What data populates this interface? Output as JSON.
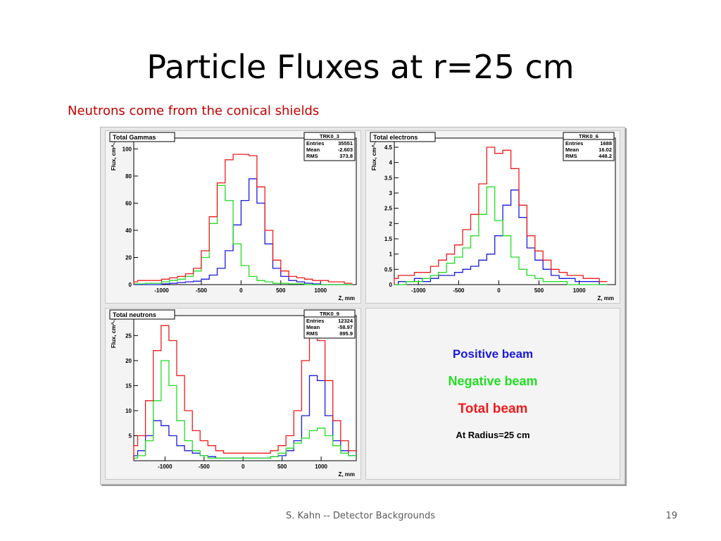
{
  "slide": {
    "title": "Particle Fluxes at r=25 cm",
    "subtitle": "Neutrons come from the conical shields",
    "footer": "S. Kahn -- Detector Backgrounds",
    "page_number": "19"
  },
  "legend": {
    "positive": "Positive beam",
    "negative": "Negative beam",
    "total": "Total beam",
    "radius": "At Radius=25 cm",
    "colors": {
      "positive": "#1a1adc",
      "negative": "#22dd22",
      "total": "#ee1c1c"
    }
  },
  "chart_data": [
    {
      "type": "line",
      "title": "Total Gammas",
      "xlabel": "Z, mm",
      "ylabel": "Flux, cm^-2",
      "xlim": [
        -1350,
        1450
      ],
      "ylim": [
        0,
        108
      ],
      "xticks": [
        -1000,
        -500,
        0,
        500,
        1000
      ],
      "yticks": [
        0,
        20,
        40,
        60,
        80,
        100
      ],
      "stats": {
        "name": "TRK0_3",
        "rows": [
          [
            "Entries",
            "35551"
          ],
          [
            "Mean",
            "-2.603"
          ],
          [
            "RMS",
            "373.8"
          ]
        ]
      },
      "x": [
        -1350,
        -1250,
        -1150,
        -1050,
        -950,
        -850,
        -750,
        -650,
        -550,
        -450,
        -350,
        -250,
        -150,
        -50,
        50,
        150,
        250,
        350,
        450,
        550,
        650,
        750,
        850,
        950,
        1050,
        1150,
        1250,
        1350
      ],
      "series": [
        {
          "name": "Positive beam",
          "color": "#1a1adc",
          "values": [
            0,
            0,
            0,
            0,
            0.5,
            1,
            1.5,
            2,
            2.5,
            4,
            7,
            12,
            25,
            44,
            62,
            78,
            60,
            30,
            12,
            6,
            3,
            2,
            1,
            0.5,
            0,
            0,
            0,
            0
          ]
        },
        {
          "name": "Negative beam",
          "color": "#22dd22",
          "values": [
            0.5,
            0.5,
            1,
            1,
            2,
            3,
            4,
            6,
            10,
            20,
            45,
            73,
            62,
            30,
            14,
            6,
            3,
            2,
            1,
            1,
            0.5,
            0.5,
            0,
            0,
            0,
            0,
            0,
            0
          ]
        },
        {
          "name": "Total beam",
          "color": "#ee1c1c",
          "values": [
            2,
            3,
            3,
            3,
            4,
            5,
            6,
            8,
            12,
            25,
            50,
            75,
            92,
            96,
            96,
            95,
            72,
            40,
            18,
            10,
            6,
            5,
            4,
            3,
            3,
            2,
            2,
            1
          ]
        }
      ]
    },
    {
      "type": "line",
      "title": "Total electrons",
      "xlabel": "Z, mm",
      "ylabel": "Flux, cm^-2",
      "xlim": [
        -1300,
        1450
      ],
      "ylim": [
        0,
        4.8
      ],
      "xticks": [
        -1000,
        -500,
        0,
        500,
        1000
      ],
      "yticks": [
        0,
        0.5,
        1,
        1.5,
        2,
        2.5,
        3,
        3.5,
        4,
        4.5
      ],
      "stats": {
        "name": "TRK0_6",
        "rows": [
          [
            "Entries",
            "1688"
          ],
          [
            "Mean",
            "16.02"
          ],
          [
            "RMS",
            "448.2"
          ]
        ]
      },
      "x": [
        -1300,
        -1200,
        -1100,
        -1000,
        -900,
        -800,
        -700,
        -600,
        -500,
        -400,
        -300,
        -200,
        -100,
        0,
        100,
        200,
        300,
        400,
        500,
        600,
        700,
        800,
        900,
        1000,
        1100,
        1200,
        1300
      ],
      "series": [
        {
          "name": "Positive beam",
          "color": "#1a1adc",
          "values": [
            0,
            0.1,
            0.1,
            0.2,
            0.1,
            0.2,
            0.3,
            0.3,
            0.4,
            0.5,
            0.6,
            0.8,
            1.0,
            1.6,
            2.6,
            3.1,
            2.2,
            1.2,
            0.8,
            0.5,
            0.3,
            0.2,
            0.2,
            0.1,
            0.1,
            0.1,
            0
          ]
        },
        {
          "name": "Negative beam",
          "color": "#22dd22",
          "values": [
            0,
            0,
            0.1,
            0.1,
            0.2,
            0.3,
            0.4,
            0.7,
            0.9,
            1.2,
            1.6,
            2.3,
            3.2,
            2.1,
            1.6,
            0.9,
            0.5,
            0.3,
            0.2,
            0.1,
            0.1,
            0.1,
            0,
            0,
            0,
            0,
            0
          ]
        },
        {
          "name": "Total beam",
          "color": "#ee1c1c",
          "values": [
            0.2,
            0.3,
            0.3,
            0.4,
            0.4,
            0.6,
            0.8,
            1.0,
            1.3,
            1.8,
            2.3,
            3.3,
            4.5,
            4.3,
            4.4,
            3.8,
            2.6,
            1.6,
            1.1,
            0.8,
            0.5,
            0.4,
            0.3,
            0.3,
            0.2,
            0.2,
            0.1
          ]
        }
      ]
    },
    {
      "type": "line",
      "title": "Total neutrons",
      "xlabel": "Z, mm",
      "ylabel": "Flux, cm^-2",
      "xlim": [
        -1400,
        1450
      ],
      "ylim": [
        0,
        29
      ],
      "xticks": [
        -1000,
        -500,
        0,
        500,
        1000
      ],
      "yticks": [
        5,
        10,
        15,
        20,
        25
      ],
      "stats": {
        "name": "TRK0_9",
        "rows": [
          [
            "Entries",
            "12324"
          ],
          [
            "Mean",
            "-58.97"
          ],
          [
            "RMS",
            "895.9"
          ]
        ]
      },
      "x": [
        -1400,
        -1300,
        -1200,
        -1100,
        -1000,
        -900,
        -800,
        -700,
        -600,
        -500,
        -400,
        -300,
        -200,
        -100,
        0,
        100,
        200,
        300,
        400,
        500,
        600,
        700,
        800,
        900,
        1000,
        1100,
        1200,
        1300,
        1400
      ],
      "series": [
        {
          "name": "Positive beam",
          "color": "#1a1adc",
          "values": [
            1,
            2,
            5,
            8,
            7,
            5,
            3,
            2,
            1.5,
            1,
            0.8,
            0.5,
            0.5,
            0.5,
            0.5,
            0.5,
            0.5,
            0.5,
            0.8,
            1,
            2,
            4,
            9,
            17,
            16,
            9,
            4,
            2,
            1
          ]
        },
        {
          "name": "Negative beam",
          "color": "#22dd22",
          "values": [
            0.5,
            1,
            4,
            12,
            20,
            15,
            8,
            4,
            2,
            1,
            0.5,
            0.5,
            0.5,
            0.5,
            0.5,
            0.5,
            0.5,
            0.5,
            0.8,
            1.5,
            2.5,
            3.5,
            4.5,
            6,
            6.5,
            5,
            3,
            1.5,
            1
          ]
        },
        {
          "name": "Total beam",
          "color": "#ee1c1c",
          "values": [
            3,
            5,
            12,
            22,
            27,
            24,
            17,
            10,
            6,
            4,
            3,
            2,
            1.5,
            1.5,
            1.5,
            1.5,
            1.5,
            1.5,
            2,
            3,
            5,
            10,
            20,
            26,
            24,
            16,
            8,
            4,
            2
          ]
        }
      ]
    }
  ]
}
